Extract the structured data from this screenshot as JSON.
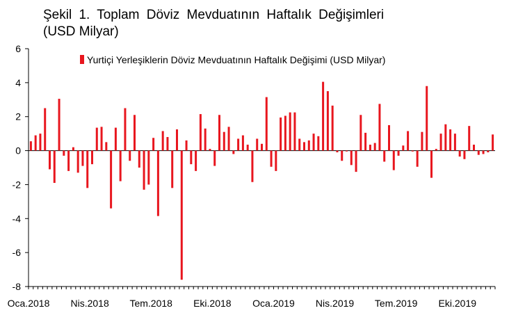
{
  "chart_data": {
    "type": "bar",
    "title_line1": "Şekil 1. Toplam Döviz Mevduatının Haftalık Değişimleri",
    "title_line2": "(USD Milyar)",
    "series": [
      {
        "name": "Yurtiçi Yerleşiklerin Döviz Mevduatının Haftalık Değişimi (USD Milyar)",
        "color": "#e8161e",
        "values": [
          0.55,
          0.9,
          1.0,
          2.5,
          -1.1,
          -1.9,
          3.05,
          -0.3,
          -1.2,
          0.2,
          -1.3,
          -0.9,
          -2.2,
          -0.8,
          1.35,
          1.4,
          0.5,
          -3.4,
          1.35,
          -1.8,
          2.5,
          -0.6,
          2.1,
          -1.0,
          -2.3,
          -2.0,
          0.75,
          -3.85,
          1.15,
          0.8,
          -2.2,
          1.25,
          -7.6,
          0.6,
          -0.8,
          -1.2,
          2.15,
          1.3,
          0.1,
          -0.9,
          2.1,
          1.1,
          1.4,
          -0.2,
          0.7,
          0.9,
          0.35,
          -1.85,
          0.7,
          0.4,
          3.15,
          -0.95,
          -1.2,
          1.95,
          2.05,
          2.25,
          2.25,
          0.7,
          0.5,
          0.6,
          1.0,
          0.85,
          4.05,
          3.5,
          2.65,
          -0.1,
          -0.6,
          -0.05,
          -0.85,
          -1.25,
          2.1,
          1.05,
          0.35,
          0.45,
          2.75,
          -0.65,
          1.5,
          -1.15,
          -0.3,
          0.3,
          1.15,
          -0.05,
          -0.95,
          1.1,
          3.8,
          -1.6,
          0.1,
          1.0,
          1.55,
          1.25,
          1.0,
          -0.35,
          -0.5,
          1.45,
          0.35,
          -0.25,
          -0.2,
          -0.1,
          0.95
        ]
      }
    ],
    "ylim": [
      -8,
      6
    ],
    "yticks": [
      "6",
      "4",
      "2",
      "0",
      "-2",
      "-4",
      "-6",
      "-8"
    ],
    "xticks": [
      "Oca.2018",
      "Nis.2018",
      "Tem.2018",
      "Eki.2018",
      "Oca.2019",
      "Nis.2019",
      "Tem.2019",
      "Eki.2019"
    ],
    "grid": false,
    "legend_position": "top"
  }
}
